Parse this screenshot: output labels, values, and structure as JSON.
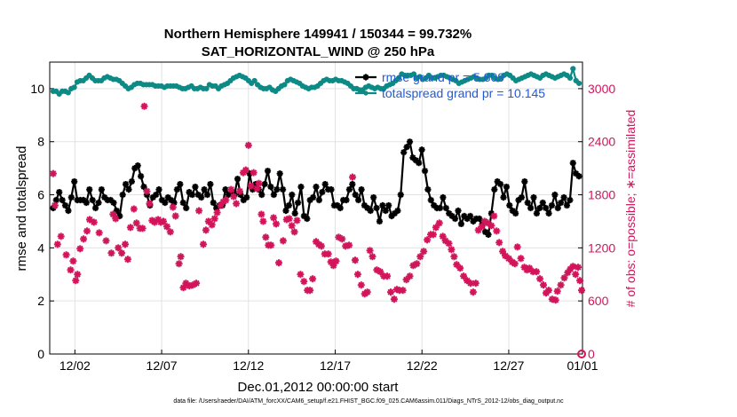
{
  "chart_data": {
    "type": "line",
    "title": "Northern Hemisphere 149941 / 150344 = 99.732%",
    "subtitle": "SAT_HORIZONTAL_WIND @ 250 hPa",
    "xlabel": "Dec.01,2012 00:00:00 start",
    "ylabel": "rmse and totalspread",
    "y2label": "# of obs: o=possible; ∗=assimilated",
    "xlim": [
      0.5,
      31.2
    ],
    "ylim": [
      0,
      11
    ],
    "y2lim": [
      0,
      3300
    ],
    "xticks": [
      {
        "x": 2,
        "label": "12/02"
      },
      {
        "x": 7,
        "label": "12/07"
      },
      {
        "x": 12,
        "label": "12/12"
      },
      {
        "x": 17,
        "label": "12/17"
      },
      {
        "x": 22,
        "label": "12/22"
      },
      {
        "x": 27,
        "label": "12/27"
      },
      {
        "x": 32,
        "label": "01/01"
      }
    ],
    "yticks": [
      0,
      2,
      4,
      6,
      8,
      10
    ],
    "y2ticks": [
      0,
      600,
      1200,
      1800,
      2400,
      3000
    ],
    "grid": true,
    "legend_position": "top-right",
    "series": [
      {
        "name": "rmse grand pr = 5.809",
        "color": "#000000",
        "axis": "left",
        "marker": "star",
        "values": [
          5.5,
          5.8,
          6.1,
          5.8,
          5.6,
          5.4,
          5.9,
          6.5,
          5.8,
          5.8,
          5.8,
          5.7,
          6.2,
          5.8,
          5.5,
          5.7,
          6.2,
          5.9,
          5.8,
          5.8,
          5.7,
          5.4,
          5.2,
          6.0,
          6.4,
          6.2,
          6.5,
          7.0,
          7.1,
          6.7,
          6.3,
          6.0,
          5.6,
          5.9,
          6.0,
          6.2,
          5.8,
          5.7,
          5.9,
          5.8,
          5.7,
          6.2,
          6.4,
          5.7,
          5.5,
          6.1,
          6.0,
          6.3,
          6.0,
          5.9,
          6.2,
          6.0,
          6.4,
          5.7,
          5.5,
          5.6,
          5.6,
          6.2,
          6.0,
          6.1,
          6.0,
          6.6,
          6.0,
          5.8,
          5.9,
          6.8,
          6.2,
          6.4,
          6.2,
          6.0,
          6.4,
          6.9,
          6.3,
          6.0,
          6.2,
          6.8,
          6.2,
          5.4,
          5.6,
          6.0,
          5.3,
          5.7,
          6.3,
          5.2,
          5.1,
          5.8,
          5.9,
          6.3,
          5.8,
          6.1,
          6.4,
          6.2,
          6.2,
          5.6,
          5.6,
          5.5,
          5.8,
          5.8,
          6.2,
          6.4,
          6.0,
          5.8,
          6.2,
          5.6,
          5.5,
          5.4,
          5.9,
          5.5,
          5.0,
          5.6,
          5.4,
          5.6,
          5.2,
          5.3,
          5.4,
          6.0,
          7.6,
          7.8,
          8.0,
          7.4,
          7.3,
          7.2,
          7.7,
          6.9,
          6.2,
          5.8,
          5.6,
          5.5,
          5.5,
          5.9,
          5.5,
          5.3,
          5.2,
          5.1,
          5.4,
          4.9,
          5.2,
          5.1,
          5.2,
          5.0,
          5.1,
          5.1,
          4.9,
          4.6,
          4.5,
          5.3,
          6.2,
          6.5,
          6.4,
          5.9,
          6.3,
          5.6,
          5.4,
          5.3,
          5.8,
          5.9,
          6.5,
          5.7,
          5.5,
          5.9,
          5.3,
          5.5,
          5.7,
          5.5,
          5.3,
          5.6,
          6.0,
          5.5,
          5.7,
          5.9,
          5.6,
          5.8,
          7.2,
          6.8,
          6.7
        ]
      },
      {
        "name": "totalspread grand pr = 10.145",
        "color": "#0d8a86",
        "axis": "left",
        "marker": "circle",
        "values": [
          9.9,
          9.9,
          9.8,
          9.9,
          9.9,
          9.85,
          10.0,
          10.05,
          10.25,
          10.3,
          10.3,
          10.4,
          10.5,
          10.4,
          10.3,
          10.3,
          10.3,
          10.4,
          10.45,
          10.4,
          10.35,
          10.35,
          10.3,
          10.2,
          10.1,
          10.0,
          10.05,
          10.15,
          10.2,
          10.2,
          10.15,
          10.15,
          10.15,
          10.15,
          10.1,
          10.1,
          10.1,
          10.05,
          10.1,
          10.1,
          10.1,
          10.1,
          10.05,
          10.0,
          10.0,
          10.05,
          10.1,
          10.0,
          10.0,
          10.05,
          10.0,
          10.0,
          10.15,
          10.1,
          10.1,
          10.0,
          10.1,
          10.15,
          10.2,
          10.3,
          10.4,
          10.45,
          10.5,
          10.45,
          10.4,
          10.3,
          10.2,
          10.3,
          10.15,
          10.05,
          10.0,
          10.0,
          10.05,
          9.95,
          9.9,
          10.0,
          10.1,
          10.15,
          10.3,
          10.35,
          10.3,
          10.25,
          10.2,
          10.1,
          10.05,
          10.0,
          10.05,
          10.05,
          10.1,
          10.2,
          10.3,
          10.35,
          10.3,
          10.3,
          10.35,
          10.3,
          10.3,
          10.25,
          10.2,
          10.1,
          10.0,
          10.0,
          9.95,
          9.95,
          10.05,
          10.1,
          10.05,
          10.0,
          10.05,
          10.0,
          10.0,
          10.1,
          10.15,
          10.2,
          10.3,
          10.4,
          10.55,
          10.5,
          10.5,
          10.5,
          10.55,
          10.4,
          10.45,
          10.35,
          10.4,
          10.5,
          10.4,
          10.4,
          10.45,
          10.5,
          10.5,
          10.45,
          10.4,
          10.35,
          10.3,
          10.2,
          10.25,
          10.3,
          10.35,
          10.4,
          10.45,
          10.4,
          10.35,
          10.35,
          10.4,
          10.5,
          10.5,
          10.4,
          10.35,
          10.4,
          10.5,
          10.55,
          10.5,
          10.4,
          10.3,
          10.35,
          10.4,
          10.45,
          10.5,
          10.55,
          10.5,
          10.45,
          10.4,
          10.5,
          10.55,
          10.5,
          10.45,
          10.4,
          10.45,
          10.5,
          10.55,
          10.5,
          10.4,
          10.75,
          10.3,
          10.2
        ]
      },
      {
        "name": "",
        "color": "#d4145a",
        "axis": "right",
        "marker": "star-only",
        "points": [
          [
            0.75,
            2040
          ],
          [
            0.85,
            1680
          ],
          [
            1.0,
            1240
          ],
          [
            1.2,
            1330
          ],
          [
            1.5,
            1120
          ],
          [
            1.75,
            950
          ],
          [
            1.9,
            1050
          ],
          [
            2.05,
            830
          ],
          [
            2.15,
            900
          ],
          [
            2.3,
            1190
          ],
          [
            2.5,
            1300
          ],
          [
            2.7,
            1390
          ],
          [
            2.85,
            1520
          ],
          [
            3.1,
            1490
          ],
          [
            3.4,
            1370
          ],
          [
            3.8,
            1280
          ],
          [
            4.1,
            1140
          ],
          [
            4.2,
            1580
          ],
          [
            4.35,
            1530
          ],
          [
            4.5,
            1200
          ],
          [
            4.7,
            1140
          ],
          [
            4.9,
            1240
          ],
          [
            5.05,
            1070
          ],
          [
            5.2,
            1430
          ],
          [
            5.4,
            1640
          ],
          [
            5.55,
            1480
          ],
          [
            5.75,
            1420
          ],
          [
            5.9,
            1420
          ],
          [
            6.0,
            2800
          ],
          [
            6.15,
            1840
          ],
          [
            6.3,
            1700
          ],
          [
            6.45,
            1510
          ],
          [
            6.6,
            1490
          ],
          [
            6.8,
            1520
          ],
          [
            6.95,
            1490
          ],
          [
            7.1,
            1500
          ],
          [
            7.3,
            1440
          ],
          [
            7.5,
            1380
          ],
          [
            7.65,
            1660
          ],
          [
            7.8,
            1560
          ],
          [
            8.0,
            1020
          ],
          [
            8.1,
            1100
          ],
          [
            8.25,
            750
          ],
          [
            8.4,
            800
          ],
          [
            8.6,
            770
          ],
          [
            8.8,
            780
          ],
          [
            9.0,
            800
          ],
          [
            9.15,
            1620
          ],
          [
            9.4,
            1240
          ],
          [
            9.55,
            1400
          ],
          [
            9.7,
            1500
          ],
          [
            9.9,
            1460
          ],
          [
            10.05,
            1530
          ],
          [
            10.2,
            1600
          ],
          [
            10.4,
            1680
          ],
          [
            10.55,
            1720
          ],
          [
            10.7,
            1740
          ],
          [
            11.0,
            1860
          ],
          [
            11.15,
            1780
          ],
          [
            11.3,
            1700
          ],
          [
            11.5,
            1840
          ],
          [
            11.7,
            2050
          ],
          [
            11.85,
            2080
          ],
          [
            12.0,
            2360
          ],
          [
            12.15,
            1900
          ],
          [
            12.3,
            2050
          ],
          [
            12.5,
            1870
          ],
          [
            12.6,
            1930
          ],
          [
            12.75,
            1580
          ],
          [
            12.85,
            1500
          ],
          [
            13.0,
            1320
          ],
          [
            13.15,
            1230
          ],
          [
            13.3,
            1230
          ],
          [
            13.45,
            1540
          ],
          [
            13.6,
            1470
          ],
          [
            13.75,
            1030
          ],
          [
            14.0,
            1280
          ],
          [
            14.2,
            1520
          ],
          [
            14.35,
            1530
          ],
          [
            14.5,
            1450
          ],
          [
            14.65,
            1380
          ],
          [
            14.8,
            1510
          ],
          [
            15.0,
            900
          ],
          [
            15.2,
            820
          ],
          [
            15.4,
            720
          ],
          [
            15.55,
            720
          ],
          [
            15.7,
            850
          ],
          [
            15.9,
            1270
          ],
          [
            16.05,
            1240
          ],
          [
            16.2,
            1220
          ],
          [
            16.4,
            1130
          ],
          [
            16.6,
            1130
          ],
          [
            16.75,
            1040
          ],
          [
            16.9,
            1000
          ],
          [
            17.05,
            1050
          ],
          [
            17.2,
            1320
          ],
          [
            17.4,
            1300
          ],
          [
            17.6,
            1220
          ],
          [
            17.8,
            1230
          ],
          [
            18.0,
            2000
          ],
          [
            18.15,
            1060
          ],
          [
            18.3,
            900
          ],
          [
            18.5,
            780
          ],
          [
            18.7,
            680
          ],
          [
            18.85,
            700
          ],
          [
            19.0,
            1170
          ],
          [
            19.15,
            1100
          ],
          [
            19.4,
            950
          ],
          [
            19.6,
            930
          ],
          [
            19.8,
            880
          ],
          [
            20.0,
            880
          ],
          [
            20.2,
            700
          ],
          [
            20.4,
            620
          ],
          [
            20.55,
            730
          ],
          [
            20.7,
            720
          ],
          [
            20.9,
            720
          ],
          [
            21.1,
            840
          ],
          [
            21.3,
            880
          ],
          [
            21.5,
            1000
          ],
          [
            21.7,
            1020
          ],
          [
            21.9,
            1100
          ],
          [
            22.1,
            1160
          ],
          [
            22.3,
            1290
          ],
          [
            22.5,
            1350
          ],
          [
            22.65,
            1350
          ],
          [
            22.8,
            1430
          ],
          [
            23.0,
            1480
          ],
          [
            23.2,
            1330
          ],
          [
            23.35,
            1280
          ],
          [
            23.55,
            1250
          ],
          [
            23.7,
            1180
          ],
          [
            23.85,
            1100
          ],
          [
            24.0,
            1010
          ],
          [
            24.2,
            970
          ],
          [
            24.4,
            880
          ],
          [
            24.6,
            830
          ],
          [
            24.8,
            800
          ],
          [
            24.95,
            700
          ],
          [
            25.1,
            800
          ],
          [
            25.25,
            1400
          ],
          [
            25.45,
            1440
          ],
          [
            25.6,
            1500
          ],
          [
            25.8,
            1480
          ],
          [
            26.0,
            1450
          ],
          [
            26.15,
            1560
          ],
          [
            26.3,
            1390
          ],
          [
            26.45,
            1260
          ],
          [
            26.65,
            1160
          ],
          [
            26.8,
            1110
          ],
          [
            27.0,
            1080
          ],
          [
            27.2,
            1040
          ],
          [
            27.35,
            1020
          ],
          [
            27.5,
            1210
          ],
          [
            27.7,
            1080
          ],
          [
            27.9,
            980
          ],
          [
            28.05,
            950
          ],
          [
            28.2,
            970
          ],
          [
            28.4,
            930
          ],
          [
            28.6,
            930
          ],
          [
            28.8,
            850
          ],
          [
            29.0,
            780
          ],
          [
            29.15,
            690
          ],
          [
            29.3,
            720
          ],
          [
            29.5,
            620
          ],
          [
            29.7,
            610
          ],
          [
            29.8,
            710
          ],
          [
            30.0,
            780
          ],
          [
            30.2,
            860
          ],
          [
            30.4,
            920
          ],
          [
            30.55,
            960
          ],
          [
            30.7,
            990
          ],
          [
            30.85,
            900
          ],
          [
            31.0,
            980
          ],
          [
            31.1,
            830
          ],
          [
            31.2,
            720
          ]
        ]
      }
    ],
    "markers": [
      {
        "name": "",
        "color": "#d4145a",
        "axis": "right",
        "marker": "circle-open",
        "points": [
          [
            31.2,
            0
          ]
        ]
      }
    ]
  },
  "footer_text": "data file: /Users/raeder/DAI/ATM_forcXX/CAM6_setup/f.e21.FHIST_BGC.f09_025.CAM6assim.011/Diags_NTrS_2012-12/obs_diag_output.nc"
}
